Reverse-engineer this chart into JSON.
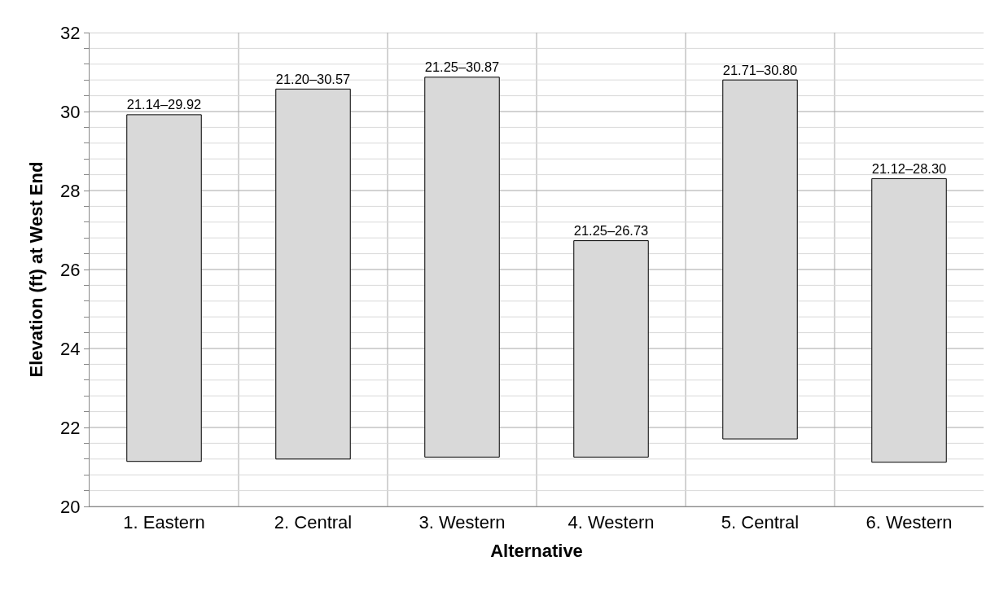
{
  "chart_data": {
    "type": "bar",
    "xlabel": "Alternative",
    "ylabel": "Elevation (ft) at West End",
    "categories": [
      "1. Eastern",
      "2. Central",
      "3. Western",
      "4. Western",
      "5. Central",
      "6. Western"
    ],
    "base": [
      21.14,
      21.2,
      21.25,
      21.25,
      21.71,
      21.12
    ],
    "values": [
      8.78,
      9.37,
      9.62,
      5.48,
      9.09,
      7.18
    ],
    "value_labels": [
      "21.14–29.92",
      "21.20–30.57",
      "21.25–30.87",
      "21.25–26.73",
      "21.71–30.80",
      "21.12–28.30"
    ],
    "color": "#d9d9d9",
    "ylim": [
      20,
      32
    ],
    "yticks": [
      20,
      {
        "value": 20.4,
        "label": null
      },
      {
        "value": 20.8,
        "label": null
      },
      {
        "value": 21.2,
        "label": null
      },
      {
        "value": 21.6,
        "label": null
      },
      22,
      {
        "value": 22.4,
        "label": null
      },
      {
        "value": 22.8,
        "label": null
      },
      {
        "value": 23.2,
        "label": null
      },
      {
        "value": 23.6,
        "label": null
      },
      24,
      {
        "value": 24.4,
        "label": null
      },
      {
        "value": 24.8,
        "label": null
      },
      {
        "value": 25.2,
        "label": null
      },
      {
        "value": 25.6,
        "label": null
      },
      26,
      {
        "value": 26.4,
        "label": null
      },
      {
        "value": 26.8,
        "label": null
      },
      {
        "value": 27.2,
        "label": null
      },
      {
        "value": 27.6,
        "label": null
      },
      28,
      {
        "value": 28.4,
        "label": null
      },
      {
        "value": 28.8,
        "label": null
      },
      {
        "value": 29.2,
        "label": null
      },
      {
        "value": 29.6,
        "label": null
      },
      30,
      {
        "value": 30.4,
        "label": null
      },
      {
        "value": 30.8,
        "label": null
      },
      {
        "value": 31.2,
        "label": null
      },
      {
        "value": 31.6,
        "label": null
      },
      32
    ],
    "grid": true
  }
}
